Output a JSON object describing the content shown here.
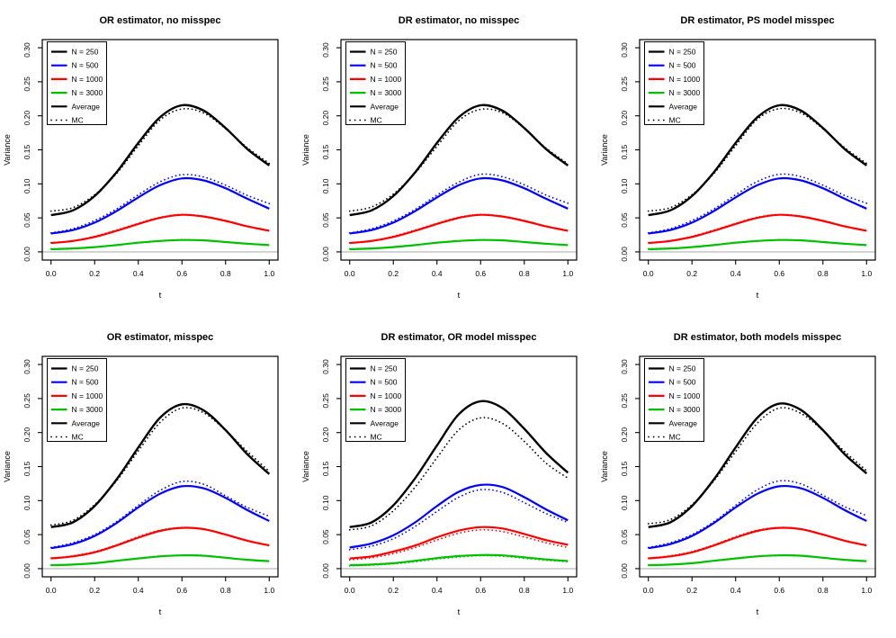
{
  "page": {
    "background": "#ffffff"
  },
  "colors": {
    "black": "#000000",
    "blue": "#0000ff",
    "red": "#ff0000",
    "green": "#00c000",
    "zero_line": "#c0c0c0",
    "axis": "#000000"
  },
  "axes_defaults": {
    "xlabel": "t",
    "ylabel": "Variance",
    "xlim": [
      0,
      1
    ],
    "ylim": [
      0,
      0.3
    ],
    "x": [
      0,
      0.1,
      0.2,
      0.3,
      0.4,
      0.5,
      0.6,
      0.7,
      0.8,
      0.9,
      1.0
    ],
    "xticks": [
      0,
      0.2,
      0.4,
      0.6,
      0.8,
      1.0
    ],
    "xtick_labels": [
      "0.0",
      "0.2",
      "0.4",
      "0.6",
      "0.8",
      "1.0"
    ],
    "yticks": [
      0,
      0.05,
      0.1,
      0.15,
      0.2,
      0.25,
      0.3
    ],
    "ytick_labels": [
      "0.00",
      "0.05",
      "0.10",
      "0.15",
      "0.20",
      "0.25",
      "0.30"
    ],
    "grid": false,
    "legend_position": "top-left",
    "legend": [
      {
        "label": "N = 250",
        "color": "black",
        "style": "solid"
      },
      {
        "label": "N = 500",
        "color": "blue",
        "style": "solid"
      },
      {
        "label": "N = 1000",
        "color": "red",
        "style": "solid"
      },
      {
        "label": "N = 3000",
        "color": "green",
        "style": "solid"
      },
      {
        "label": "Average",
        "color": "black",
        "style": "solid"
      },
      {
        "label": "MC",
        "color": "black",
        "style": "dotted"
      }
    ]
  },
  "chart_data": [
    {
      "type": "line",
      "title": "OR estimator, no misspec",
      "series": [
        {
          "name": "N = 250 Average",
          "color": "black",
          "style": "solid",
          "values": [
            0.054,
            0.061,
            0.082,
            0.117,
            0.16,
            0.198,
            0.2155,
            0.2075,
            0.182,
            0.151,
            0.127
          ]
        },
        {
          "name": "N = 250 MC",
          "color": "black",
          "style": "dotted",
          "values": [
            0.06,
            0.065,
            0.084,
            0.115,
            0.156,
            0.194,
            0.21,
            0.204,
            0.181,
            0.153,
            0.13
          ]
        },
        {
          "name": "N = 500 Average",
          "color": "blue",
          "style": "solid",
          "values": [
            0.027,
            0.032,
            0.043,
            0.06,
            0.08,
            0.098,
            0.108,
            0.105,
            0.0935,
            0.078,
            0.0635
          ]
        },
        {
          "name": "N = 500 MC",
          "color": "blue",
          "style": "dotted",
          "values": [
            0.028,
            0.034,
            0.046,
            0.063,
            0.084,
            0.103,
            0.1135,
            0.11,
            0.098,
            0.083,
            0.071
          ]
        },
        {
          "name": "N = 1000 Average",
          "color": "red",
          "style": "solid",
          "values": [
            0.013,
            0.016,
            0.022,
            0.031,
            0.041,
            0.05,
            0.0545,
            0.052,
            0.0455,
            0.0375,
            0.031
          ]
        },
        {
          "name": "N = 1000 MC",
          "color": "red",
          "style": "dotted",
          "values": [
            0.0135,
            0.0165,
            0.023,
            0.032,
            0.042,
            0.051,
            0.055,
            0.0525,
            0.046,
            0.038,
            0.0315
          ]
        },
        {
          "name": "N = 3000 Average",
          "color": "green",
          "style": "solid",
          "values": [
            0.004,
            0.005,
            0.007,
            0.01,
            0.0135,
            0.016,
            0.0175,
            0.017,
            0.0145,
            0.012,
            0.01
          ]
        },
        {
          "name": "N = 3000 MC",
          "color": "green",
          "style": "dotted",
          "values": [
            0.0045,
            0.0055,
            0.0075,
            0.0105,
            0.014,
            0.0165,
            0.018,
            0.0172,
            0.0148,
            0.0122,
            0.0102
          ]
        }
      ]
    },
    {
      "type": "line",
      "title": "DR estimator, no misspec",
      "series": [
        {
          "name": "N = 250 Average",
          "color": "black",
          "style": "solid",
          "values": [
            0.054,
            0.061,
            0.082,
            0.117,
            0.16,
            0.198,
            0.2155,
            0.2075,
            0.182,
            0.151,
            0.127
          ]
        },
        {
          "name": "N = 250 MC",
          "color": "black",
          "style": "dotted",
          "values": [
            0.06,
            0.066,
            0.085,
            0.116,
            0.155,
            0.193,
            0.2095,
            0.2045,
            0.1815,
            0.1525,
            0.1295
          ]
        },
        {
          "name": "N = 500 Average",
          "color": "blue",
          "style": "solid",
          "values": [
            0.027,
            0.032,
            0.043,
            0.06,
            0.08,
            0.098,
            0.108,
            0.105,
            0.0935,
            0.078,
            0.0635
          ]
        },
        {
          "name": "N = 500 MC",
          "color": "blue",
          "style": "dotted",
          "values": [
            0.028,
            0.034,
            0.0455,
            0.0625,
            0.0835,
            0.1025,
            0.114,
            0.1105,
            0.0985,
            0.0835,
            0.0715
          ]
        },
        {
          "name": "N = 1000 Average",
          "color": "red",
          "style": "solid",
          "values": [
            0.013,
            0.016,
            0.022,
            0.031,
            0.041,
            0.05,
            0.0545,
            0.052,
            0.0455,
            0.0375,
            0.031
          ]
        },
        {
          "name": "N = 1000 MC",
          "color": "red",
          "style": "dotted",
          "values": [
            0.0135,
            0.0165,
            0.023,
            0.032,
            0.042,
            0.051,
            0.055,
            0.0525,
            0.046,
            0.038,
            0.0315
          ]
        },
        {
          "name": "N = 3000 Average",
          "color": "green",
          "style": "solid",
          "values": [
            0.004,
            0.005,
            0.007,
            0.01,
            0.0135,
            0.016,
            0.0175,
            0.017,
            0.0145,
            0.012,
            0.01
          ]
        },
        {
          "name": "N = 3000 MC",
          "color": "green",
          "style": "dotted",
          "values": [
            0.0045,
            0.0055,
            0.0075,
            0.0105,
            0.014,
            0.0165,
            0.018,
            0.0172,
            0.0148,
            0.0122,
            0.0102
          ]
        }
      ]
    },
    {
      "type": "line",
      "title": "DR estimator, PS model misspec",
      "series": [
        {
          "name": "N = 250 Average",
          "color": "black",
          "style": "solid",
          "values": [
            0.054,
            0.061,
            0.082,
            0.117,
            0.16,
            0.198,
            0.2155,
            0.2075,
            0.182,
            0.151,
            0.127
          ]
        },
        {
          "name": "N = 250 MC",
          "color": "black",
          "style": "dotted",
          "values": [
            0.06,
            0.065,
            0.084,
            0.115,
            0.156,
            0.195,
            0.2105,
            0.204,
            0.181,
            0.153,
            0.13
          ]
        },
        {
          "name": "N = 500 Average",
          "color": "blue",
          "style": "solid",
          "values": [
            0.027,
            0.032,
            0.043,
            0.06,
            0.08,
            0.098,
            0.108,
            0.105,
            0.0935,
            0.078,
            0.0635
          ]
        },
        {
          "name": "N = 500 MC",
          "color": "blue",
          "style": "dotted",
          "values": [
            0.028,
            0.034,
            0.046,
            0.063,
            0.084,
            0.1035,
            0.114,
            0.1105,
            0.098,
            0.083,
            0.0715
          ]
        },
        {
          "name": "N = 1000 Average",
          "color": "red",
          "style": "solid",
          "values": [
            0.013,
            0.016,
            0.022,
            0.031,
            0.041,
            0.05,
            0.0545,
            0.052,
            0.0455,
            0.0375,
            0.031
          ]
        },
        {
          "name": "N = 1000 MC",
          "color": "red",
          "style": "dotted",
          "values": [
            0.0135,
            0.0165,
            0.023,
            0.032,
            0.042,
            0.051,
            0.055,
            0.0525,
            0.046,
            0.038,
            0.0315
          ]
        },
        {
          "name": "N = 3000 Average",
          "color": "green",
          "style": "solid",
          "values": [
            0.004,
            0.005,
            0.007,
            0.01,
            0.0135,
            0.016,
            0.0175,
            0.017,
            0.0145,
            0.012,
            0.01
          ]
        },
        {
          "name": "N = 3000 MC",
          "color": "green",
          "style": "dotted",
          "values": [
            0.0045,
            0.0055,
            0.0075,
            0.0105,
            0.014,
            0.0165,
            0.018,
            0.0172,
            0.0148,
            0.0122,
            0.0102
          ]
        }
      ]
    },
    {
      "type": "line",
      "title": "OR estimator, misspec",
      "series": [
        {
          "name": "N = 250 Average",
          "color": "black",
          "style": "solid",
          "values": [
            0.061,
            0.068,
            0.092,
            0.131,
            0.178,
            0.222,
            0.2415,
            0.2325,
            0.2035,
            0.168,
            0.139
          ]
        },
        {
          "name": "N = 250 MC",
          "color": "black",
          "style": "dotted",
          "values": [
            0.064,
            0.071,
            0.094,
            0.129,
            0.173,
            0.215,
            0.236,
            0.229,
            0.203,
            0.172,
            0.143
          ]
        },
        {
          "name": "N = 500 Average",
          "color": "blue",
          "style": "solid",
          "values": [
            0.03,
            0.036,
            0.048,
            0.067,
            0.09,
            0.11,
            0.121,
            0.118,
            0.104,
            0.086,
            0.07
          ]
        },
        {
          "name": "N = 500 MC",
          "color": "blue",
          "style": "dotted",
          "values": [
            0.031,
            0.038,
            0.05,
            0.069,
            0.093,
            0.115,
            0.128,
            0.124,
            0.107,
            0.09,
            0.077
          ]
        },
        {
          "name": "N = 1000 Average",
          "color": "red",
          "style": "solid",
          "values": [
            0.015,
            0.018,
            0.024,
            0.034,
            0.0455,
            0.0555,
            0.06,
            0.058,
            0.05,
            0.041,
            0.034
          ]
        },
        {
          "name": "N = 1000 MC",
          "color": "red",
          "style": "dotted",
          "values": [
            0.0155,
            0.019,
            0.025,
            0.035,
            0.047,
            0.0565,
            0.0605,
            0.0585,
            0.0505,
            0.0415,
            0.0345
          ]
        },
        {
          "name": "N = 3000 Average",
          "color": "green",
          "style": "solid",
          "values": [
            0.005,
            0.006,
            0.008,
            0.0115,
            0.015,
            0.018,
            0.0195,
            0.019,
            0.016,
            0.013,
            0.011
          ]
        },
        {
          "name": "N = 3000 MC",
          "color": "green",
          "style": "dotted",
          "values": [
            0.0052,
            0.0063,
            0.0083,
            0.012,
            0.0155,
            0.0185,
            0.02,
            0.0193,
            0.0163,
            0.0133,
            0.0112
          ]
        }
      ]
    },
    {
      "type": "line",
      "title": "DR estimator, OR model misspec",
      "series": [
        {
          "name": "N = 250 Average",
          "color": "black",
          "style": "solid",
          "values": [
            0.061,
            0.068,
            0.093,
            0.133,
            0.181,
            0.227,
            0.246,
            0.236,
            0.2055,
            0.17,
            0.141
          ]
        },
        {
          "name": "N = 250 MC",
          "color": "black",
          "style": "dotted",
          "values": [
            0.057,
            0.063,
            0.085,
            0.12,
            0.163,
            0.204,
            0.2215,
            0.2135,
            0.187,
            0.155,
            0.133
          ]
        },
        {
          "name": "N = 500 Average",
          "color": "blue",
          "style": "solid",
          "values": [
            0.031,
            0.037,
            0.049,
            0.068,
            0.092,
            0.113,
            0.123,
            0.12,
            0.105,
            0.087,
            0.071
          ]
        },
        {
          "name": "N = 500 MC",
          "color": "blue",
          "style": "dotted",
          "values": [
            0.028,
            0.033,
            0.044,
            0.062,
            0.084,
            0.105,
            0.116,
            0.112,
            0.097,
            0.081,
            0.068
          ]
        },
        {
          "name": "N = 1000 Average",
          "color": "red",
          "style": "solid",
          "values": [
            0.015,
            0.018,
            0.025,
            0.034,
            0.046,
            0.056,
            0.061,
            0.059,
            0.051,
            0.042,
            0.035
          ]
        },
        {
          "name": "N = 1000 MC",
          "color": "red",
          "style": "dotted",
          "values": [
            0.013,
            0.016,
            0.022,
            0.031,
            0.042,
            0.052,
            0.057,
            0.0545,
            0.0465,
            0.038,
            0.031
          ]
        },
        {
          "name": "N = 3000 Average",
          "color": "green",
          "style": "solid",
          "values": [
            0.005,
            0.006,
            0.008,
            0.0115,
            0.0155,
            0.0185,
            0.02,
            0.0195,
            0.0165,
            0.0135,
            0.0112
          ]
        },
        {
          "name": "N = 3000 MC",
          "color": "green",
          "style": "dotted",
          "values": [
            0.004,
            0.005,
            0.007,
            0.01,
            0.014,
            0.017,
            0.019,
            0.0182,
            0.0152,
            0.0123,
            0.0101
          ]
        }
      ]
    },
    {
      "type": "line",
      "title": "DR estimator, both models misspec",
      "series": [
        {
          "name": "N = 250 Average",
          "color": "black",
          "style": "solid",
          "values": [
            0.061,
            0.068,
            0.092,
            0.131,
            0.178,
            0.222,
            0.2425,
            0.233,
            0.2035,
            0.168,
            0.14
          ]
        },
        {
          "name": "N = 250 MC",
          "color": "black",
          "style": "dotted",
          "values": [
            0.066,
            0.072,
            0.094,
            0.129,
            0.172,
            0.214,
            0.236,
            0.228,
            0.203,
            0.172,
            0.144
          ]
        },
        {
          "name": "N = 500 Average",
          "color": "blue",
          "style": "solid",
          "values": [
            0.03,
            0.036,
            0.048,
            0.067,
            0.09,
            0.11,
            0.121,
            0.118,
            0.104,
            0.086,
            0.07
          ]
        },
        {
          "name": "N = 500 MC",
          "color": "blue",
          "style": "dotted",
          "values": [
            0.031,
            0.038,
            0.05,
            0.069,
            0.093,
            0.116,
            0.129,
            0.1245,
            0.108,
            0.091,
            0.078
          ]
        },
        {
          "name": "N = 1000 Average",
          "color": "red",
          "style": "solid",
          "values": [
            0.015,
            0.018,
            0.024,
            0.034,
            0.0455,
            0.0555,
            0.06,
            0.058,
            0.05,
            0.041,
            0.034
          ]
        },
        {
          "name": "N = 1000 MC",
          "color": "red",
          "style": "dotted",
          "values": [
            0.0155,
            0.019,
            0.025,
            0.035,
            0.047,
            0.0565,
            0.0605,
            0.0585,
            0.0505,
            0.0415,
            0.0345
          ]
        },
        {
          "name": "N = 3000 Average",
          "color": "green",
          "style": "solid",
          "values": [
            0.005,
            0.006,
            0.008,
            0.0115,
            0.015,
            0.018,
            0.0195,
            0.019,
            0.016,
            0.013,
            0.011
          ]
        },
        {
          "name": "N = 3000 MC",
          "color": "green",
          "style": "dotted",
          "values": [
            0.0052,
            0.0063,
            0.0083,
            0.012,
            0.0155,
            0.0185,
            0.02,
            0.0193,
            0.0163,
            0.0133,
            0.0112
          ]
        }
      ]
    }
  ]
}
